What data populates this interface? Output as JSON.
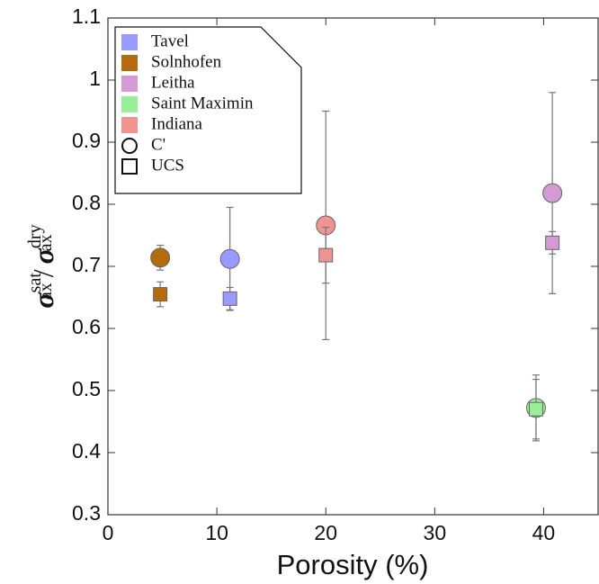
{
  "chart_data": {
    "type": "scatter",
    "xlabel": "Porosity (%)",
    "ylabel": [
      "σ",
      "sat",
      "ax",
      "/",
      "σ",
      "dry",
      "ax"
    ],
    "xlim": [
      0,
      45
    ],
    "xticks": [
      0,
      10,
      20,
      30,
      40
    ],
    "ylim": [
      0.3,
      1.1
    ],
    "yticks": [
      0.3,
      0.4,
      0.5,
      0.6,
      0.7,
      0.8,
      0.9,
      1,
      1.1
    ],
    "markers": [
      {
        "name": "C'",
        "shape": "circle"
      },
      {
        "name": "UCS",
        "shape": "square"
      }
    ],
    "series": [
      {
        "name": "Tavel",
        "color": "#9999ff",
        "x": 11.2,
        "values": [
          0.712,
          0.648
        ],
        "errors": [
          0.083,
          0.018
        ]
      },
      {
        "name": "Solnhofen",
        "color": "#b36b0e",
        "x": 4.8,
        "values": [
          0.714,
          0.655
        ],
        "errors": [
          0.02,
          0.02
        ]
      },
      {
        "name": "Leitha",
        "color": "#d49ad4",
        "x": 40.8,
        "values": [
          0.818,
          0.738
        ],
        "errors": [
          0.162,
          0.018
        ]
      },
      {
        "name": "Saint Maximin",
        "color": "#99ee99",
        "x": 39.3,
        "values": [
          0.472,
          0.47
        ],
        "errors": [
          0.053,
          0.048
        ]
      },
      {
        "name": "Indiana",
        "color": "#f09393",
        "x": 20,
        "values": [
          0.766,
          0.718
        ],
        "errors": [
          0.184,
          0.045
        ]
      }
    ]
  }
}
